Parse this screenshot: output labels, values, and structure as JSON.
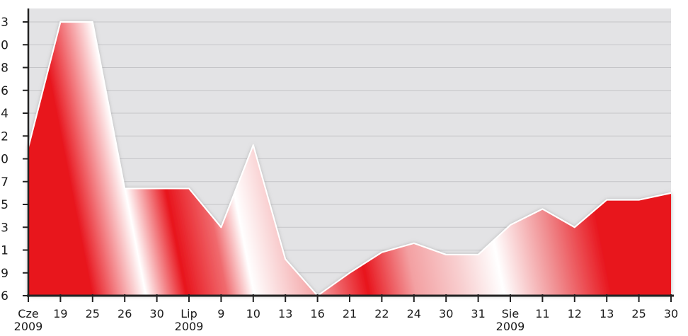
{
  "chart_data": {
    "type": "area",
    "title": "",
    "xlabel": "",
    "ylabel": "",
    "grid": true,
    "colors": {
      "fill": "#e8141c",
      "fill_light": "#ffffff",
      "plot_background": "#e3e3e5",
      "grid": "#c5c5c8",
      "outline": "#ffffff",
      "axis": "#222222"
    },
    "y_ticks": [
      {
        "value": 1,
        "label": "3"
      },
      {
        "value": 2,
        "label": "0"
      },
      {
        "value": 3,
        "label": "8"
      },
      {
        "value": 4,
        "label": "6"
      },
      {
        "value": 5,
        "label": "4"
      },
      {
        "value": 6,
        "label": "2"
      },
      {
        "value": 7,
        "label": "0"
      },
      {
        "value": 8,
        "label": "7"
      },
      {
        "value": 9,
        "label": "5"
      },
      {
        "value": 10,
        "label": "3"
      },
      {
        "value": 11,
        "label": "1"
      },
      {
        "value": 12,
        "label": "9"
      },
      {
        "value": 13,
        "label": "6"
      }
    ],
    "ylim": [
      0.55,
      13
    ],
    "categories": [
      "Cze",
      "19",
      "25",
      "26",
      "30",
      "Lip",
      "9",
      "10",
      "13",
      "16",
      "21",
      "22",
      "24",
      "30",
      "31",
      "Sie",
      "11",
      "12",
      "13",
      "25",
      "30"
    ],
    "category_sublabels": [
      "2009",
      "",
      "",
      "",
      "",
      "2009",
      "",
      "",
      "",
      "",
      "",
      "",
      "",
      "",
      "",
      "2009",
      "",
      "",
      "",
      "",
      ""
    ],
    "series": [
      {
        "x": [
          0,
          1,
          2,
          3,
          4,
          5,
          6,
          7,
          8,
          9,
          10,
          11,
          12,
          13,
          14,
          15,
          16,
          17,
          18,
          19,
          20
        ],
        "values": [
          6.5,
          1,
          1,
          8.3,
          8.3,
          8.3,
          10,
          6.4,
          11.4,
          13,
          12,
          11.1,
          10.7,
          11.2,
          11.2,
          9.9,
          9.2,
          10,
          8.8,
          8.8,
          8.5
        ]
      }
    ]
  }
}
